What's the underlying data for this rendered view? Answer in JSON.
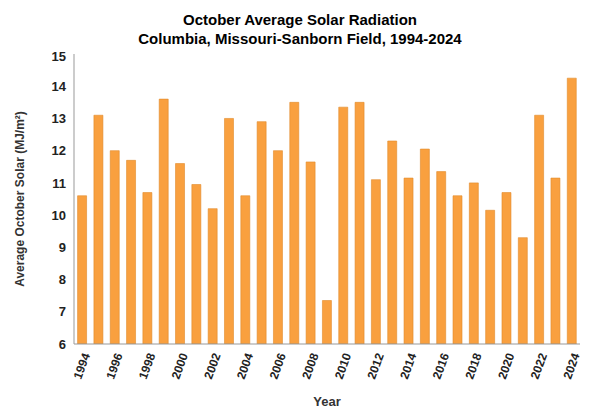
{
  "chart_data": {
    "type": "bar",
    "title": "October Average Solar Radiation",
    "subtitle": "Columbia, Missouri-Sanborn Field, 1994-2024",
    "x_label": "Year",
    "y_label": "Average October Solar (MJ/m²)",
    "categories": [
      "1994",
      null,
      "1996",
      null,
      "1998",
      null,
      "2000",
      null,
      "2002",
      null,
      "2004",
      null,
      "2006",
      null,
      "2008",
      null,
      "2010",
      null,
      "2012",
      null,
      "2014",
      null,
      "2016",
      null,
      "2018",
      null,
      "2020",
      null,
      "2022",
      null,
      "2024"
    ],
    "values": [
      10.6,
      13.1,
      12.0,
      11.7,
      10.7,
      13.6,
      11.6,
      10.95,
      10.2,
      13.0,
      10.6,
      12.9,
      12.0,
      13.5,
      11.65,
      7.35,
      13.35,
      13.5,
      11.1,
      12.3,
      11.15,
      12.05,
      11.35,
      10.6,
      11.0,
      10.15,
      10.7,
      9.3,
      13.1,
      11.15,
      14.25
    ],
    "color": "#f9a03f",
    "ylim": [
      6,
      15
    ],
    "yticks": [
      6,
      7,
      8,
      9,
      10,
      11,
      12,
      13,
      14,
      15
    ],
    "grid": false
  }
}
